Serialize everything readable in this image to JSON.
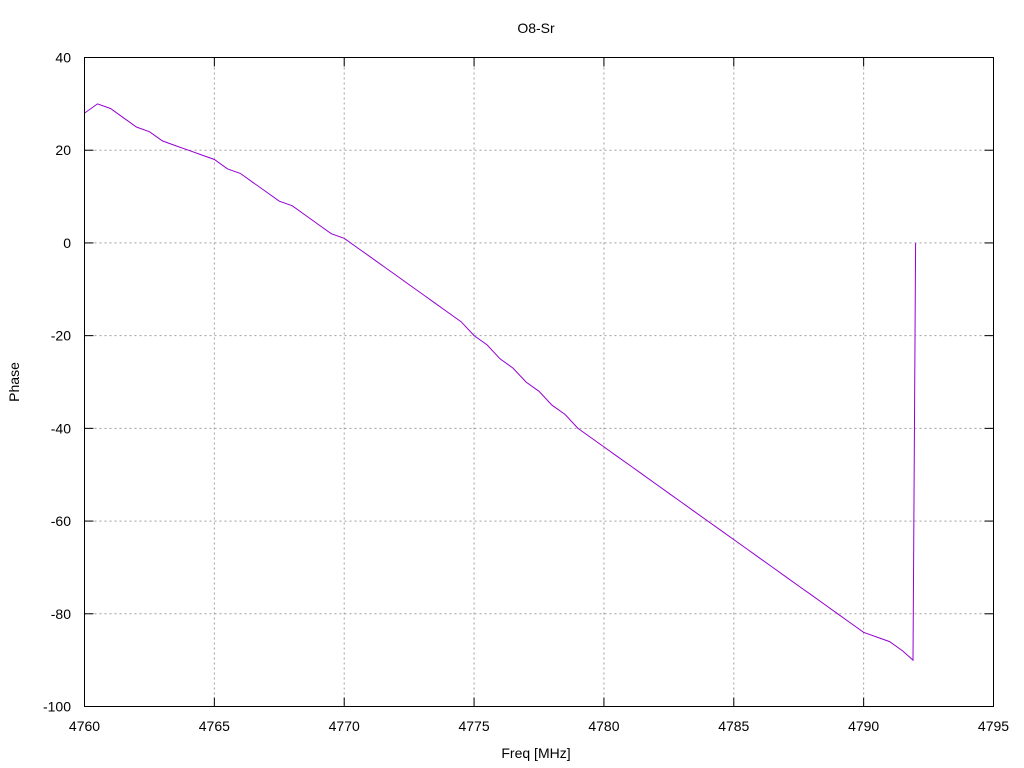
{
  "chart_data": {
    "type": "line",
    "title": "O8-Sr",
    "xlabel": "Freq [MHz]",
    "ylabel": "Phase",
    "xlim": [
      4760,
      4795
    ],
    "ylim": [
      -100,
      40
    ],
    "xticks": [
      4760,
      4765,
      4770,
      4775,
      4780,
      4785,
      4790,
      4795
    ],
    "yticks": [
      -100,
      -80,
      -60,
      -40,
      -20,
      0,
      20,
      40
    ],
    "grid": true,
    "legend": "none",
    "series_color": "#9400d3",
    "series": [
      {
        "x": [
          4760.0,
          4760.5,
          4761.0,
          4761.5,
          4762.0,
          4762.5,
          4763.0,
          4763.5,
          4764.0,
          4764.5,
          4765.0,
          4765.5,
          4766.0,
          4766.5,
          4767.0,
          4767.5,
          4768.0,
          4768.5,
          4769.0,
          4769.5,
          4770.0,
          4770.5,
          4771.0,
          4771.5,
          4772.0,
          4772.5,
          4773.0,
          4773.5,
          4774.0,
          4774.5,
          4775.0,
          4775.5,
          4776.0,
          4776.5,
          4777.0,
          4777.5,
          4778.0,
          4778.5,
          4779.0,
          4779.5,
          4780.0,
          4780.5,
          4781.0,
          4781.5,
          4782.0,
          4782.5,
          4783.0,
          4783.5,
          4784.0,
          4784.5,
          4785.0,
          4785.5,
          4786.0,
          4786.5,
          4787.0,
          4787.5,
          4788.0,
          4788.5,
          4789.0,
          4789.5,
          4790.0,
          4790.5,
          4791.0,
          4791.5,
          4791.9,
          4792.0
        ],
        "values": [
          28,
          30,
          29,
          27,
          25,
          24,
          22,
          21,
          20,
          19,
          18,
          16,
          15,
          13,
          11,
          9,
          8,
          6,
          4,
          2,
          1,
          -1,
          -3,
          -5,
          -7,
          -9,
          -11,
          -13,
          -15,
          -17,
          -20,
          -22,
          -25,
          -27,
          -30,
          -32,
          -35,
          -37,
          -40,
          -42,
          -44,
          -46,
          -48,
          -50,
          -52,
          -54,
          -56,
          -58,
          -60,
          -62,
          -64,
          -66,
          -68,
          -70,
          -72,
          -74,
          -76,
          -78,
          -80,
          -82,
          -84,
          -85,
          -86,
          -88,
          -90,
          0
        ]
      }
    ]
  }
}
